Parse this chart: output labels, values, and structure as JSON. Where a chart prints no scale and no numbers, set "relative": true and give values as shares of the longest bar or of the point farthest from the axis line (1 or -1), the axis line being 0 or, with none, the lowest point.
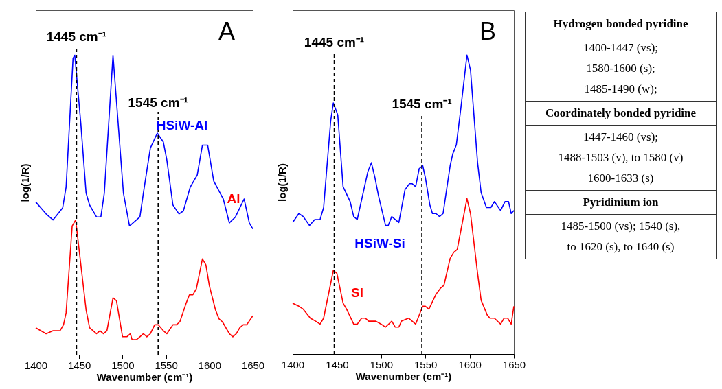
{
  "chart_data": [
    {
      "type": "line",
      "title": "A",
      "xlabel": "Wavenumber (cm⁻¹)",
      "ylabel": "log(1/R)",
      "relative": true,
      "xlim": [
        1400,
        1650
      ],
      "xticks": [
        1400,
        1450,
        1500,
        1550,
        1600,
        1650
      ],
      "grid": false,
      "legend": false,
      "series": [
        {
          "name": "HSiW-Al",
          "color": "#0000ff",
          "x": [
            1400,
            1412,
            1420,
            1431,
            1435,
            1443,
            1445,
            1452,
            1458,
            1462,
            1470,
            1475,
            1479,
            1489,
            1501,
            1508,
            1520,
            1524,
            1532,
            1540,
            1547,
            1551,
            1558,
            1565,
            1570,
            1578,
            1586,
            1592,
            1598,
            1605,
            1616,
            1623,
            1630,
            1640,
            1646,
            1650
          ],
          "values": [
            0.51,
            0.47,
            0.45,
            0.49,
            0.56,
            0.99,
            1.0,
            0.77,
            0.54,
            0.5,
            0.46,
            0.46,
            0.54,
            1.0,
            0.54,
            0.43,
            0.46,
            0.54,
            0.69,
            0.74,
            0.71,
            0.65,
            0.5,
            0.47,
            0.48,
            0.56,
            0.6,
            0.7,
            0.7,
            0.58,
            0.52,
            0.44,
            0.46,
            0.52,
            0.44,
            0.42
          ]
        },
        {
          "name": "Al",
          "color": "#ff0000",
          "x": [
            1400,
            1412,
            1420,
            1428,
            1432,
            1435,
            1442,
            1446,
            1458,
            1462,
            1470,
            1474,
            1478,
            1482,
            1489,
            1493,
            1500,
            1505,
            1509,
            1511,
            1516,
            1520,
            1524,
            1528,
            1532,
            1537,
            1541,
            1547,
            1551,
            1558,
            1562,
            1566,
            1573,
            1577,
            1581,
            1585,
            1592,
            1596,
            1600,
            1607,
            1611,
            1615,
            1623,
            1627,
            1631,
            1635,
            1639,
            1643,
            1650
          ],
          "values": [
            0.09,
            0.07,
            0.08,
            0.08,
            0.1,
            0.14,
            0.43,
            0.45,
            0.15,
            0.09,
            0.07,
            0.08,
            0.07,
            0.08,
            0.19,
            0.18,
            0.06,
            0.06,
            0.07,
            0.05,
            0.05,
            0.06,
            0.07,
            0.06,
            0.07,
            0.1,
            0.1,
            0.08,
            0.07,
            0.1,
            0.1,
            0.11,
            0.17,
            0.2,
            0.2,
            0.22,
            0.32,
            0.3,
            0.23,
            0.15,
            0.12,
            0.11,
            0.07,
            0.06,
            0.07,
            0.09,
            0.1,
            0.1,
            0.13
          ]
        }
      ],
      "ref_lines": [
        {
          "axis": "x",
          "value": 1447,
          "label": "1445 cm⁻¹",
          "color": "#000000",
          "line_style": "dashed"
        },
        {
          "axis": "x",
          "value": 1541,
          "label": "1545 cm⁻¹",
          "color": "#000000",
          "line_style": "dashed"
        }
      ]
    },
    {
      "type": "line",
      "title": "B",
      "xlabel": "Wavenumber (cm⁻¹)",
      "ylabel": "log(1/R)",
      "relative": true,
      "xlim": [
        1400,
        1650
      ],
      "xticks": [
        1400,
        1450,
        1500,
        1550,
        1600,
        1650
      ],
      "grid": false,
      "legend": false,
      "series": [
        {
          "name": "HSiW-Si",
          "color": "#0000ff",
          "x": [
            1400,
            1407,
            1412,
            1419,
            1425,
            1431,
            1435,
            1443,
            1446,
            1451,
            1457,
            1465,
            1469,
            1473,
            1485,
            1489,
            1493,
            1497,
            1505,
            1508,
            1512,
            1520,
            1527,
            1532,
            1535,
            1539,
            1543,
            1547,
            1550,
            1555,
            1558,
            1562,
            1566,
            1570,
            1578,
            1581,
            1585,
            1590,
            1597,
            1601,
            1609,
            1613,
            1619,
            1624,
            1628,
            1635,
            1640,
            1644,
            1647,
            1650
          ],
          "values": [
            0.44,
            0.47,
            0.46,
            0.43,
            0.45,
            0.45,
            0.49,
            0.78,
            0.84,
            0.8,
            0.56,
            0.51,
            0.46,
            0.45,
            0.61,
            0.64,
            0.59,
            0.53,
            0.43,
            0.43,
            0.46,
            0.44,
            0.55,
            0.57,
            0.57,
            0.56,
            0.62,
            0.63,
            0.59,
            0.5,
            0.47,
            0.47,
            0.46,
            0.47,
            0.63,
            0.67,
            0.7,
            0.82,
            1.0,
            0.95,
            0.64,
            0.54,
            0.49,
            0.49,
            0.51,
            0.48,
            0.51,
            0.51,
            0.47,
            0.48
          ]
        },
        {
          "name": "Si",
          "color": "#ff0000",
          "x": [
            1400,
            1407,
            1412,
            1420,
            1426,
            1431,
            1435,
            1446,
            1450,
            1457,
            1461,
            1469,
            1473,
            1478,
            1482,
            1486,
            1490,
            1494,
            1500,
            1505,
            1512,
            1516,
            1520,
            1523,
            1531,
            1539,
            1547,
            1550,
            1554,
            1562,
            1567,
            1571,
            1578,
            1582,
            1586,
            1597,
            1601,
            1609,
            1613,
            1620,
            1623,
            1628,
            1635,
            1639,
            1643,
            1647,
            1650
          ],
          "values": [
            0.17,
            0.16,
            0.15,
            0.12,
            0.11,
            0.1,
            0.12,
            0.28,
            0.27,
            0.17,
            0.15,
            0.1,
            0.1,
            0.12,
            0.12,
            0.11,
            0.11,
            0.11,
            0.1,
            0.09,
            0.11,
            0.09,
            0.09,
            0.11,
            0.12,
            0.1,
            0.16,
            0.16,
            0.15,
            0.2,
            0.22,
            0.23,
            0.32,
            0.34,
            0.35,
            0.52,
            0.47,
            0.27,
            0.18,
            0.13,
            0.12,
            0.12,
            0.1,
            0.12,
            0.12,
            0.1,
            0.16
          ]
        }
      ],
      "ref_lines": [
        {
          "axis": "x",
          "value": 1447,
          "label": "1445 cm⁻¹",
          "color": "#000000",
          "line_style": "dashed"
        },
        {
          "axis": "x",
          "value": 1546,
          "label": "1545 cm⁻¹",
          "color": "#000000",
          "line_style": "dashed"
        }
      ]
    },
    {
      "type": "other",
      "annotations": [
        "Hydrogen bonded pyridine",
        "1400-1447 (vs);\n1580-1600 (s);\n1485-1490 (w);",
        "Coordinately bonded pyridine",
        "1447-1460 (vs);\n1488-1503 (v), to 1580 (v)\n1600-1633 (s)",
        "Pyridinium ion",
        "1485-1500 (vs); 1540 (s),\nto 1620 (s), to 1640 (s)"
      ]
    }
  ]
}
